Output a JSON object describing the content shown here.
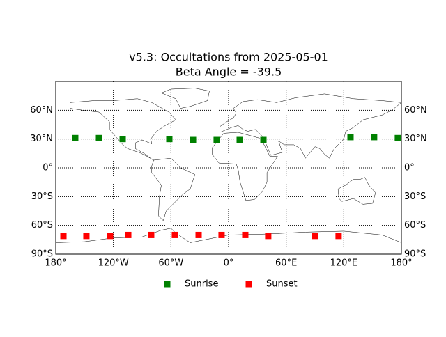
{
  "chart_data": {
    "type": "scatter",
    "title": "v5.3: Occultations from 2025-05-01",
    "subtitle": "Beta Angle = -39.5",
    "xlim": [
      -180,
      180
    ],
    "ylim": [
      -90,
      90
    ],
    "xticks": [
      {
        "value": -180,
        "label": "180°"
      },
      {
        "value": -120,
        "label": "120°W"
      },
      {
        "value": -60,
        "label": "60°W"
      },
      {
        "value": 0,
        "label": "0°"
      },
      {
        "value": 60,
        "label": "60°E"
      },
      {
        "value": 120,
        "label": "120°E"
      },
      {
        "value": 180,
        "label": "180°"
      }
    ],
    "yticks": [
      {
        "value": -90,
        "label": "90°S"
      },
      {
        "value": -60,
        "label": "60°S"
      },
      {
        "value": -30,
        "label": "30°S"
      },
      {
        "value": 0,
        "label": "0°"
      },
      {
        "value": 30,
        "label": "30°N"
      },
      {
        "value": 60,
        "label": "60°N"
      }
    ],
    "grid": true,
    "legend": "bottom",
    "series": [
      {
        "name": "Sunrise",
        "color": "#008000",
        "x": [
          -159.7,
          -135,
          -110.3,
          -61.7,
          -37,
          -12.4,
          11.6,
          36.3,
          127,
          151.6,
          176.3
        ],
        "values": [
          31,
          31,
          30,
          30,
          29,
          29,
          29,
          29,
          32,
          32,
          31
        ]
      },
      {
        "name": "Sunset",
        "color": "#ff0000",
        "x": [
          -172,
          -148.1,
          -123.4,
          -104.5,
          -80.6,
          -55.9,
          -31.2,
          -7.3,
          17.4,
          41.3,
          90,
          114.6
        ],
        "values": [
          -71,
          -71,
          -71,
          -70,
          -70,
          -70,
          -70,
          -70,
          -70,
          -71,
          -71,
          -71
        ]
      }
    ]
  }
}
